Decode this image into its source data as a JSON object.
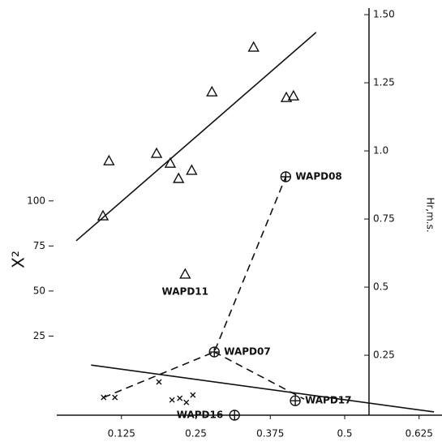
{
  "chart_data": {
    "type": "scatter",
    "y_label": "X²",
    "y2_label": "Hr,m.s.",
    "xlim": [
      0,
      0.662
    ],
    "xticks": [
      0.125,
      0.25,
      0.375,
      0.5,
      0.625
    ],
    "ylim": [
      -18.9,
      207
    ],
    "yticks": [
      25,
      50,
      75,
      100
    ],
    "y2lim": [
      0.03,
      1.524
    ],
    "y2ticks": [
      0.25,
      0.5,
      {
        "value": 0.75,
        "label": "0.75"
      },
      {
        "value": 1.0,
        "label": "1.0"
      },
      {
        "value": 1.25,
        "label": "1.25"
      },
      {
        "value": 1.5,
        "label": "1.50"
      }
    ],
    "color": "#111111",
    "series": [
      {
        "marker": "triangle",
        "axis": "y2",
        "x": [
          0.104,
          0.184,
          0.207,
          0.221,
          0.243,
          0.094,
          0.277,
          0.347,
          0.402,
          0.414,
          0.232
        ],
        "values": [
          0.964,
          0.991,
          0.955,
          0.899,
          0.929,
          0.762,
          1.217,
          1.381,
          1.196,
          1.202,
          0.548
        ],
        "labels": [
          null,
          null,
          null,
          null,
          null,
          null,
          null,
          null,
          null,
          null,
          "WAPD11"
        ]
      },
      {
        "marker": "circled",
        "axis": "y2",
        "x": [
          0.401,
          0.281,
          0.417,
          0.315
        ],
        "values": [
          0.905,
          0.262,
          0.083,
          0.03
        ],
        "labels": [
          "WAPD08",
          "WAPD07",
          "WAPD17",
          "WAPD16"
        ]
      },
      {
        "marker": "x",
        "axis": "y2",
        "x": [
          0.095,
          0.114,
          0.188,
          0.21,
          0.223,
          0.234,
          0.245
        ],
        "values": [
          0.095,
          0.095,
          0.152,
          0.086,
          0.092,
          0.077,
          0.104
        ]
      },
      {
        "line": "solid",
        "axis": "y2",
        "x": [
          0.049,
          0.452
        ],
        "values": [
          0.67,
          1.435
        ]
      },
      {
        "line": "solid",
        "axis": "y2",
        "x": [
          0.074,
          0.65
        ],
        "values": [
          0.214,
          0.042
        ]
      },
      {
        "line": "dashed",
        "axis": "y2",
        "x": [
          0.095,
          0.281,
          0.401
        ],
        "values": [
          0.095,
          0.262,
          0.905
        ]
      },
      {
        "line": "dashed",
        "axis": "y2",
        "x": [
          0.281,
          0.432
        ],
        "values": [
          0.262,
          0.089
        ]
      }
    ]
  }
}
